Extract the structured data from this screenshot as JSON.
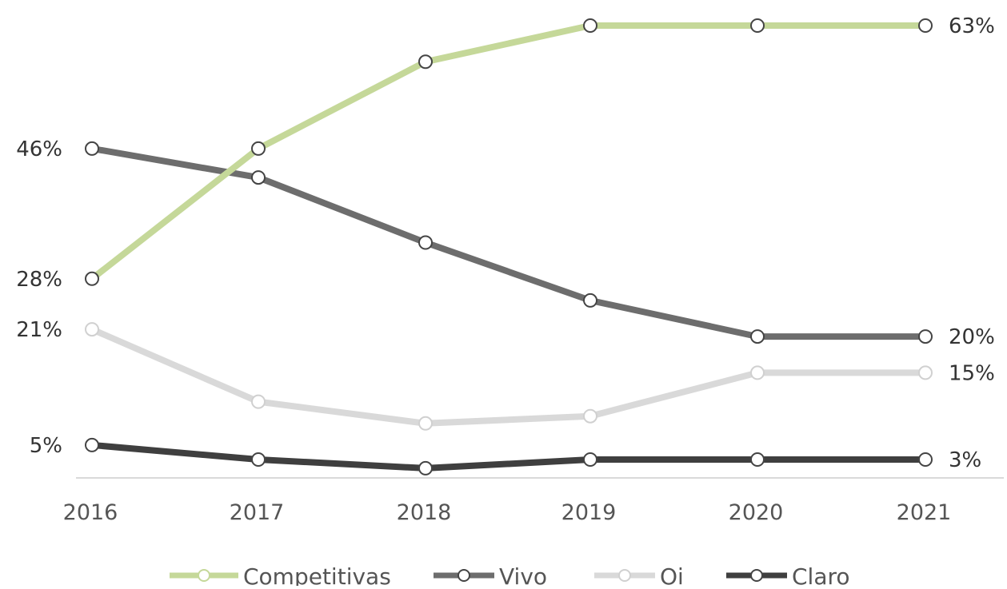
{
  "chart_data": {
    "type": "line",
    "title": "",
    "xlabel": "",
    "ylabel": "",
    "categories": [
      "2016",
      "2017",
      "2018",
      "2019",
      "2020",
      "2021"
    ],
    "ylim": [
      3,
      63
    ],
    "grid": false,
    "legend_position": "bottom",
    "series": [
      {
        "name": "Competitivas",
        "color": "#c5d899",
        "values": [
          28,
          46,
          58,
          63,
          63,
          63
        ],
        "labels": [
          "28%",
          "",
          "",
          "",
          "",
          "63%"
        ]
      },
      {
        "name": "Vivo",
        "color": "#6d6d6d",
        "values": [
          46,
          42,
          33,
          25,
          20,
          20
        ],
        "labels": [
          "46%",
          "",
          "",
          "",
          "",
          "20%"
        ]
      },
      {
        "name": "Oi",
        "color": "#d9d9d9",
        "values": [
          21,
          11,
          8,
          9,
          15,
          15
        ],
        "labels": [
          "21%",
          "",
          "",
          "",
          "",
          "15%"
        ]
      },
      {
        "name": "Claro",
        "color": "#3f3f3f",
        "values": [
          5,
          3,
          1.8,
          3,
          3,
          3
        ],
        "labels": [
          "5%",
          "",
          "",
          "",
          "",
          "3%"
        ]
      }
    ]
  }
}
